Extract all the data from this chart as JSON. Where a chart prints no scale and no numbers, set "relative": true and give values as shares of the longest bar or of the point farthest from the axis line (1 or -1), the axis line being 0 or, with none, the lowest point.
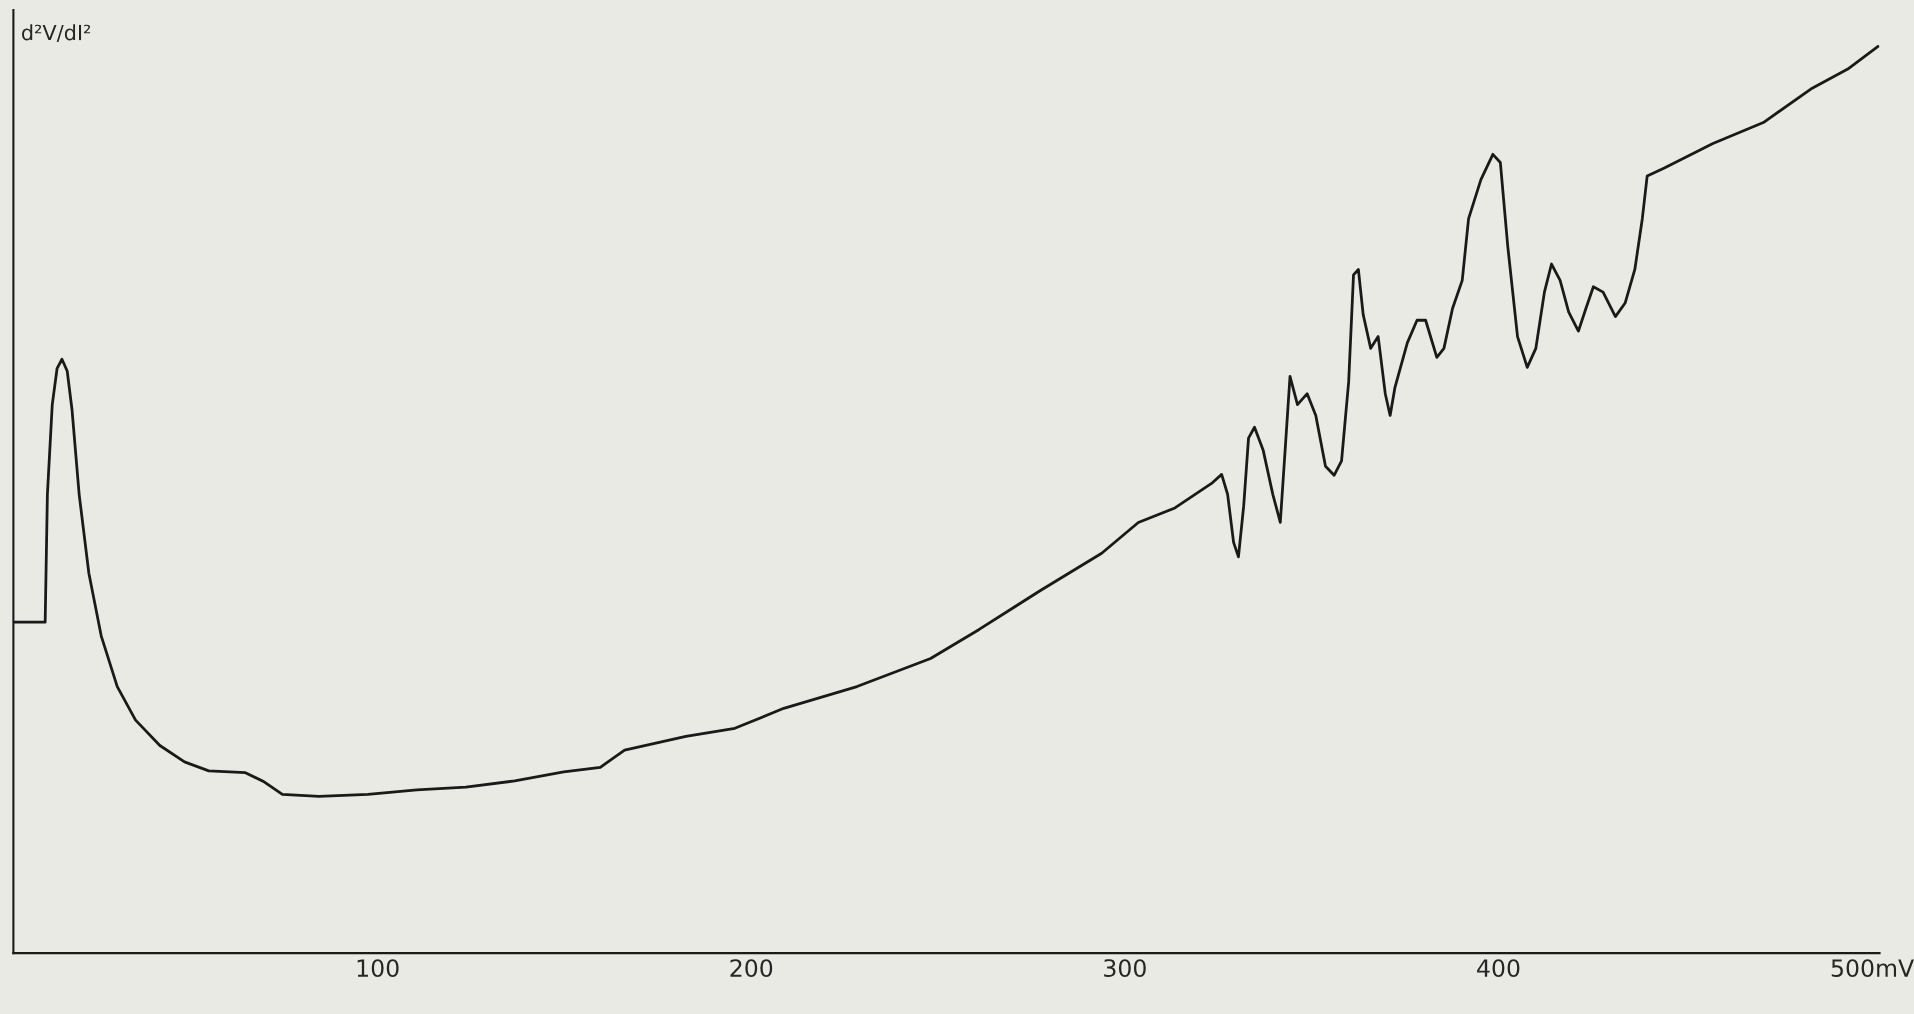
{
  "chart_data": {
    "type": "line",
    "relative": true,
    "ylabel": "d²V/dI²",
    "xlim": [
      2.5,
      502
    ],
    "xticks": [
      100,
      200,
      300,
      400,
      {
        "value": 500,
        "label": "500mV"
      }
    ],
    "grid": false,
    "marker": "none",
    "line_style": "solid",
    "series": [
      {
        "color": "#1a1a1a",
        "x": [
          2.5,
          11.0,
          11.6,
          12.9,
          14.2,
          15.5,
          16.9,
          18.2,
          20.1,
          22.7,
          26.0,
          30.3,
          35.2,
          41.7,
          48.3,
          54.8,
          64.6,
          69.6,
          74.5,
          84.3,
          97.4,
          110.5,
          123.6,
          136.7,
          149.8,
          159.6,
          166.1,
          182.5,
          195.6,
          208.7,
          228.3,
          248.0,
          261.0,
          277.4,
          293.8,
          303.6,
          313.4,
          323.2,
          325.9,
          327.5,
          329.1,
          330.4,
          331.8,
          333.1,
          334.7,
          337.0,
          339.6,
          341.6,
          342.9,
          344.2,
          346.2,
          348.8,
          351.1,
          353.7,
          356.0,
          358.0,
          359.9,
          361.2,
          362.5,
          363.8,
          365.8,
          367.8,
          369.7,
          371.0,
          372.3,
          375.6,
          378.2,
          380.5,
          383.5,
          385.4,
          387.7,
          390.3,
          392.0,
          395.3,
          398.5,
          400.5,
          402.5,
          405.1,
          407.7,
          410.0,
          412.3,
          414.2,
          416.5,
          418.8,
          421.4,
          423.4,
          425.4,
          428.0,
          431.3,
          433.9,
          436.5,
          438.5,
          439.8,
          444.4,
          457.4,
          470.9,
          483.6,
          493.5,
          501.6
        ],
        "values": [
          0.365,
          0.365,
          0.506,
          0.605,
          0.645,
          0.655,
          0.642,
          0.599,
          0.506,
          0.419,
          0.35,
          0.294,
          0.257,
          0.229,
          0.211,
          0.201,
          0.199,
          0.189,
          0.175,
          0.173,
          0.175,
          0.18,
          0.183,
          0.19,
          0.2,
          0.205,
          0.224,
          0.239,
          0.248,
          0.27,
          0.294,
          0.325,
          0.357,
          0.4,
          0.441,
          0.475,
          0.491,
          0.518,
          0.528,
          0.506,
          0.453,
          0.437,
          0.493,
          0.568,
          0.58,
          0.555,
          0.506,
          0.475,
          0.555,
          0.636,
          0.605,
          0.617,
          0.593,
          0.537,
          0.527,
          0.543,
          0.63,
          0.748,
          0.754,
          0.704,
          0.667,
          0.68,
          0.617,
          0.593,
          0.624,
          0.673,
          0.698,
          0.698,
          0.657,
          0.667,
          0.711,
          0.742,
          0.81,
          0.853,
          0.881,
          0.872,
          0.779,
          0.68,
          0.646,
          0.667,
          0.729,
          0.76,
          0.742,
          0.707,
          0.686,
          0.711,
          0.735,
          0.729,
          0.702,
          0.717,
          0.754,
          0.81,
          0.857,
          0.866,
          0.893,
          0.916,
          0.953,
          0.975,
          1.0
        ]
      }
    ]
  }
}
